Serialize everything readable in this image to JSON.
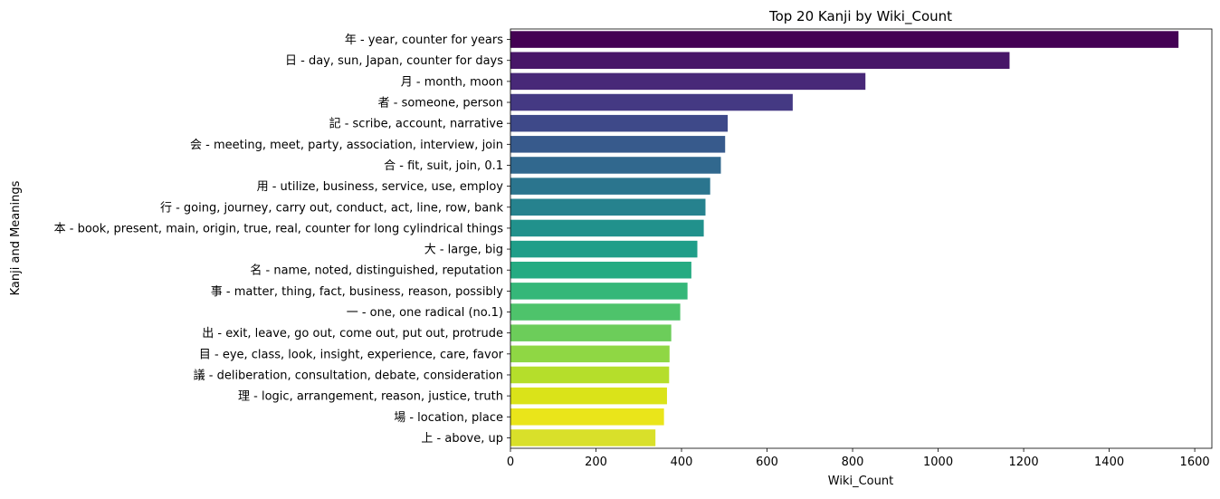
{
  "chart_data": {
    "type": "bar",
    "orientation": "horizontal",
    "title": "Top 20 Kanji by Wiki_Count",
    "xlabel": "Wiki_Count",
    "ylabel": "Kanji and Meanings",
    "xlim": [
      0,
      1640
    ],
    "xticks": [
      0,
      200,
      400,
      600,
      800,
      1000,
      1200,
      1400,
      1600
    ],
    "grid": false,
    "colormap": "viridis",
    "categories": [
      "年 - year, counter for years",
      "日 - day, sun, Japan, counter for days",
      "月 - month, moon",
      "者 - someone, person",
      "記 - scribe, account, narrative",
      "会 - meeting, meet, party, association, interview, join",
      "合 - fit, suit, join, 0.1",
      "用 - utilize, business, service, use, employ",
      "行 - going, journey, carry out, conduct, act, line, row, bank",
      "本 - book, present, main, origin, true, real, counter for long cylindrical things",
      "大 - large, big",
      "名 - name, noted, distinguished, reputation",
      "事 - matter, thing, fact, business, reason, possibly",
      "一 - one, one radical (no.1)",
      "出 - exit, leave, go out, come out, put out, protrude",
      "目 - eye, class, look, insight, experience, care, favor",
      "議 - deliberation, consultation, debate, consideration",
      "理 - logic, arrangement, reason, justice, truth",
      "場 - location, place",
      "上 - above, up"
    ],
    "values": [
      1562,
      1167,
      830,
      660,
      508,
      502,
      492,
      467,
      456,
      452,
      437,
      423,
      414,
      397,
      376,
      372,
      371,
      366,
      359,
      339
    ],
    "colors": [
      "#440154",
      "#481668",
      "#482878",
      "#443983",
      "#3e4989",
      "#375a8c",
      "#31688e",
      "#2b758e",
      "#26828e",
      "#21918c",
      "#1f9e89",
      "#25ab82",
      "#35b779",
      "#4ec36b",
      "#6ccd5a",
      "#8fd744",
      "#b5de2b",
      "#dae319",
      "#eae51a",
      "#d9e02a"
    ]
  }
}
